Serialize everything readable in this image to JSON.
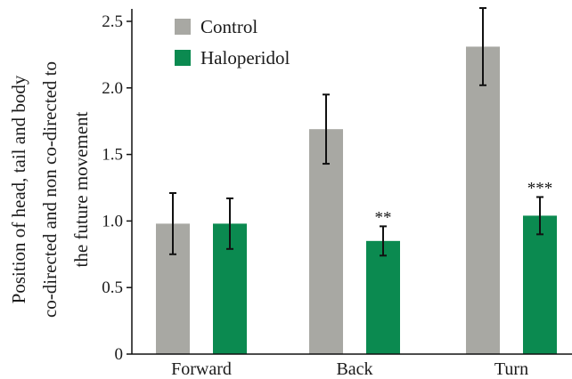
{
  "chart_data": {
    "type": "bar",
    "categories": [
      "Forward",
      "Back",
      "Turn"
    ],
    "series": [
      {
        "name": "Control",
        "color": "#a8a8a3",
        "values": [
          0.98,
          1.69,
          2.31
        ],
        "errors": [
          0.23,
          0.26,
          0.29
        ],
        "significance": [
          "",
          "",
          ""
        ]
      },
      {
        "name": "Haloperidol",
        "color": "#0b8a50",
        "values": [
          0.98,
          0.85,
          1.04
        ],
        "errors": [
          0.19,
          0.11,
          0.14
        ],
        "significance": [
          "",
          "**",
          "***"
        ]
      }
    ],
    "ylabel": [
      "Position of head, tail and body",
      "co-directed and non co-directed to",
      "the future movement"
    ],
    "yticks": [
      "0",
      "0.5",
      "1.0",
      "1.5",
      "2.0",
      "2.5"
    ],
    "ylim": [
      0,
      2.6
    ],
    "grid": false,
    "legend": "top-left"
  }
}
